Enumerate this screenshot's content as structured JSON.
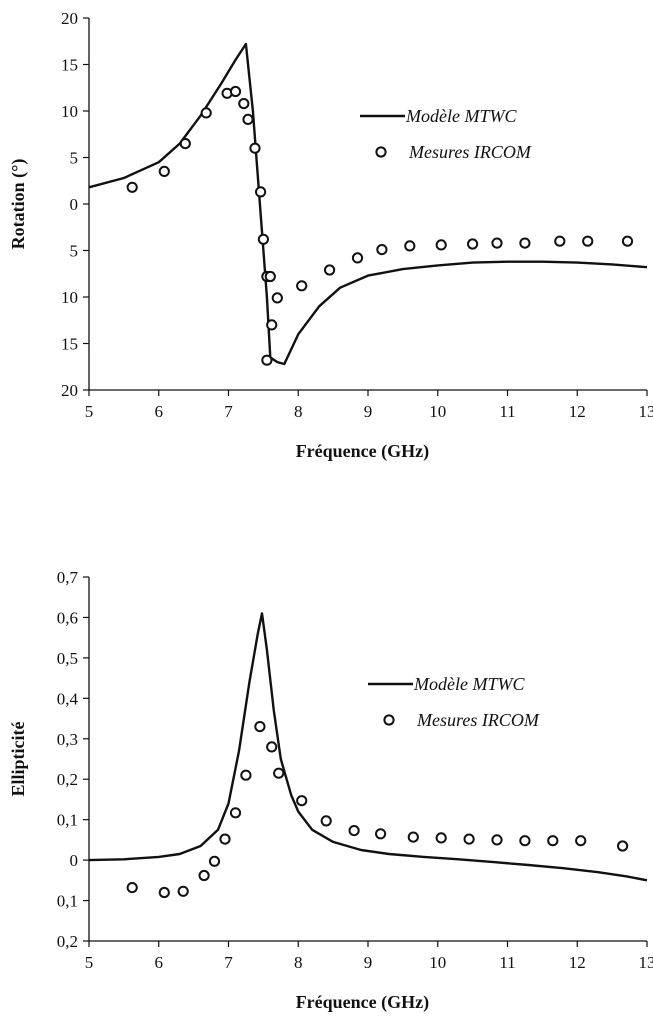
{
  "chart_data": [
    {
      "type": "line",
      "title": "",
      "xlabel": "Fréquence (GHz)",
      "ylabel": "Rotation  (°)",
      "xlim": [
        5,
        13
      ],
      "ylim": [
        -20,
        20
      ],
      "xticks": [
        5,
        6,
        7,
        8,
        9,
        10,
        11,
        12,
        13
      ],
      "xtick_labels": [
        "5",
        "6",
        "7",
        "8",
        "9",
        "10",
        "11",
        "12",
        "13"
      ],
      "yticks": [
        20,
        15,
        10,
        5,
        0,
        -5,
        -10,
        -15,
        -20
      ],
      "ytick_labels": [
        "20",
        "15",
        "10",
        "5",
        "0",
        "5",
        "10",
        "15",
        "20"
      ],
      "legend": "right",
      "series": [
        {
          "name": "Modèle MTWC",
          "style": "line",
          "x": [
            5.0,
            5.5,
            6.0,
            6.3,
            6.6,
            6.9,
            7.1,
            7.25,
            7.35,
            7.45,
            7.55,
            7.6,
            7.7,
            7.8,
            8.0,
            8.3,
            8.6,
            9.0,
            9.5,
            10.0,
            10.5,
            11.0,
            11.5,
            12.0,
            12.5,
            13.0
          ],
          "y": [
            1.8,
            2.8,
            4.5,
            6.5,
            9.5,
            13.0,
            15.5,
            17.2,
            10.0,
            0.0,
            -10.0,
            -16.5,
            -17.0,
            -17.2,
            -14.0,
            -11.0,
            -9.0,
            -7.7,
            -7.0,
            -6.6,
            -6.3,
            -6.2,
            -6.2,
            -6.3,
            -6.5,
            -6.8
          ]
        },
        {
          "name": "Mesures IRCOM",
          "style": "markers",
          "x": [
            5.62,
            6.08,
            6.38,
            6.68,
            6.98,
            7.1,
            7.22,
            7.28,
            7.38,
            7.46,
            7.5,
            7.55,
            7.62,
            7.7,
            7.55,
            7.6,
            8.05,
            8.45,
            8.85,
            9.2,
            9.6,
            10.05,
            10.5,
            10.85,
            11.25,
            11.75,
            12.15,
            12.72
          ],
          "y": [
            1.8,
            3.5,
            6.5,
            9.8,
            11.9,
            12.1,
            10.8,
            9.1,
            6.0,
            1.3,
            -3.8,
            -7.8,
            -13.0,
            -10.1,
            -16.8,
            -7.8,
            -8.8,
            -7.1,
            -5.8,
            -4.9,
            -4.5,
            -4.4,
            -4.3,
            -4.2,
            -4.2,
            -4.0,
            -4.0,
            -4.0
          ]
        }
      ]
    },
    {
      "type": "line",
      "title": "",
      "xlabel": "Fréquence (GHz)",
      "ylabel": "Ellipticité",
      "xlim": [
        5,
        13
      ],
      "ylim": [
        -0.2,
        0.7
      ],
      "xticks": [
        5,
        6,
        7,
        8,
        9,
        10,
        11,
        12,
        13
      ],
      "xtick_labels": [
        "5",
        "6",
        "7",
        "8",
        "9",
        "10",
        "11",
        "12",
        "13"
      ],
      "yticks": [
        0.7,
        0.6,
        0.5,
        0.4,
        0.3,
        0.2,
        0.1,
        0.0,
        -0.1,
        -0.2
      ],
      "ytick_labels": [
        "0,7",
        "0,6",
        "0,5",
        "0,4",
        "0,3",
        "0,2",
        "0,1",
        "0",
        "0,1",
        "0,2"
      ],
      "legend": "right",
      "series": [
        {
          "name": "Modèle MTWC",
          "style": "line",
          "x": [
            5.0,
            5.5,
            6.0,
            6.3,
            6.6,
            6.85,
            7.0,
            7.15,
            7.3,
            7.42,
            7.48,
            7.55,
            7.65,
            7.75,
            7.9,
            8.0,
            8.2,
            8.5,
            8.9,
            9.3,
            9.8,
            10.3,
            10.8,
            11.3,
            11.8,
            12.3,
            12.7,
            13.0
          ],
          "y": [
            0.0,
            0.002,
            0.008,
            0.015,
            0.035,
            0.075,
            0.14,
            0.27,
            0.44,
            0.56,
            0.61,
            0.52,
            0.37,
            0.25,
            0.16,
            0.12,
            0.075,
            0.045,
            0.025,
            0.015,
            0.008,
            0.002,
            -0.005,
            -0.012,
            -0.02,
            -0.03,
            -0.04,
            -0.05
          ]
        },
        {
          "name": "Mesures IRCOM",
          "style": "markers",
          "x": [
            5.62,
            6.08,
            6.35,
            6.65,
            6.8,
            6.95,
            7.1,
            7.25,
            7.45,
            7.62,
            7.72,
            8.05,
            8.4,
            8.8,
            9.18,
            9.65,
            10.05,
            10.45,
            10.85,
            11.25,
            11.65,
            12.05,
            12.65
          ],
          "y": [
            -0.068,
            -0.08,
            -0.077,
            -0.038,
            -0.003,
            0.052,
            0.117,
            0.21,
            0.33,
            0.28,
            0.215,
            0.147,
            0.097,
            0.073,
            0.065,
            0.057,
            0.055,
            0.052,
            0.05,
            0.048,
            0.048,
            0.048,
            0.035
          ]
        }
      ]
    }
  ]
}
